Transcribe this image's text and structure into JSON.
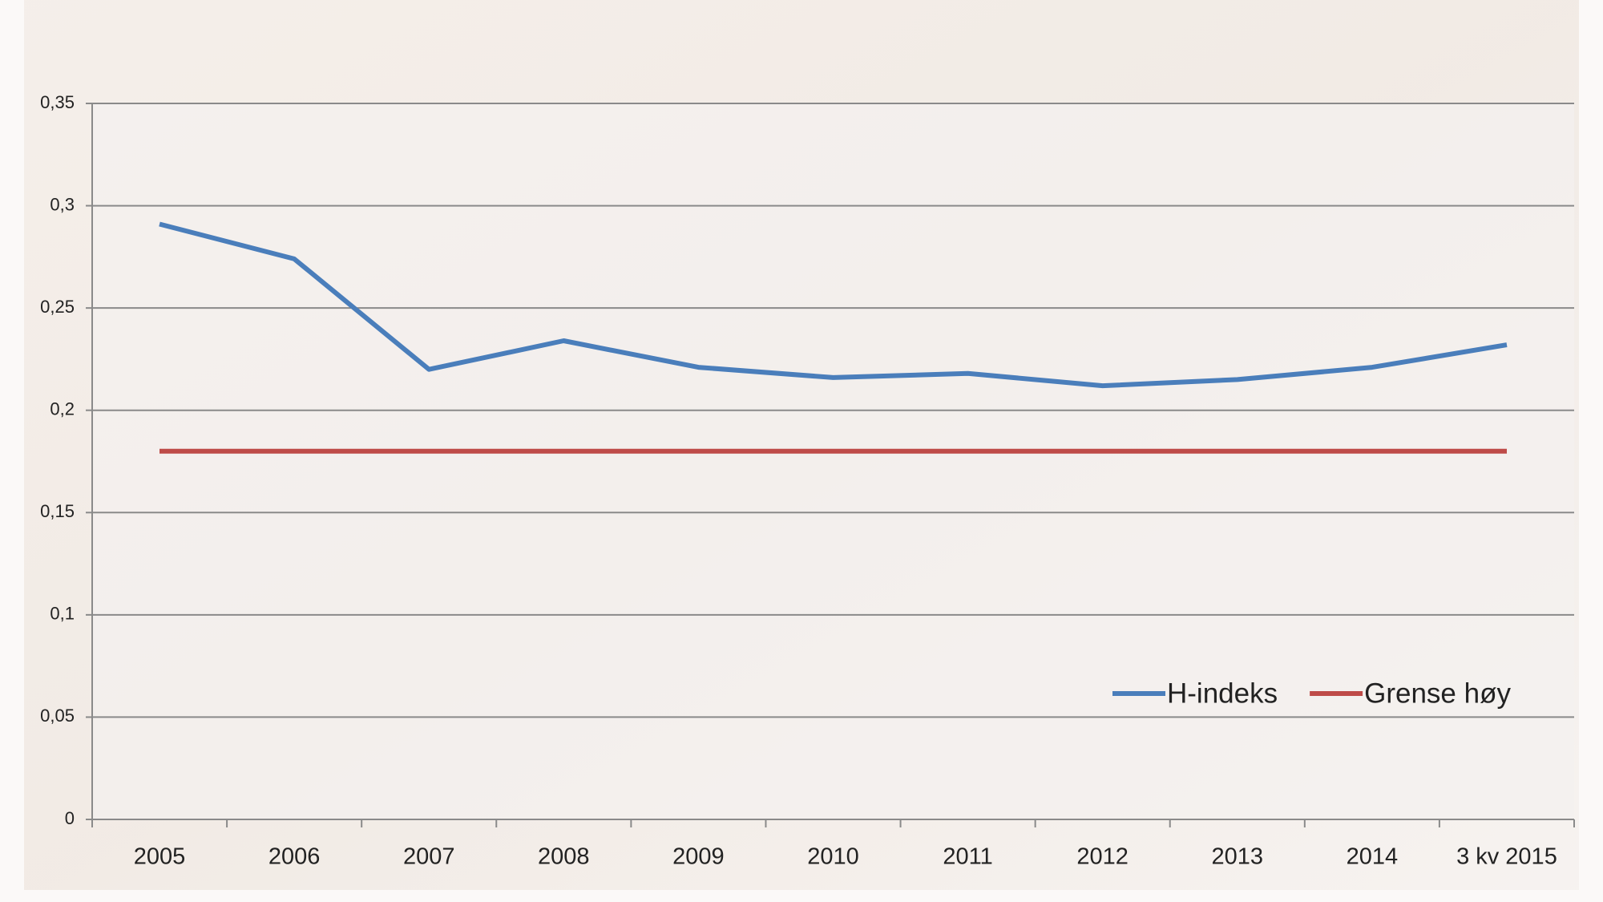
{
  "chart_data": {
    "type": "line",
    "categories": [
      "2005",
      "2006",
      "2007",
      "2008",
      "2009",
      "2010",
      "2011",
      "2012",
      "2013",
      "2014",
      "3 kv 2015"
    ],
    "series": [
      {
        "name": "H-indeks",
        "color": "#4a7ebb",
        "values": [
          0.291,
          0.274,
          0.22,
          0.234,
          0.221,
          0.216,
          0.218,
          0.212,
          0.215,
          0.221,
          0.232
        ]
      },
      {
        "name": "Grense høy",
        "color": "#be4b48",
        "values": [
          0.18,
          0.18,
          0.18,
          0.18,
          0.18,
          0.18,
          0.18,
          0.18,
          0.18,
          0.18,
          0.18
        ]
      }
    ],
    "ylim": [
      0,
      0.35
    ],
    "yticks": [
      0,
      {
        "value": 0.05,
        "label": "0,05"
      },
      {
        "value": 0.1,
        "label": "0,1"
      },
      {
        "value": 0.15,
        "label": "0,15"
      },
      {
        "value": 0.2,
        "label": "0,2"
      },
      {
        "value": 0.25,
        "label": "0,25"
      },
      {
        "value": 0.3,
        "label": "0,3"
      },
      {
        "value": 0.35,
        "label": "0,35"
      }
    ],
    "grid": true,
    "legend": "bottom-right"
  }
}
